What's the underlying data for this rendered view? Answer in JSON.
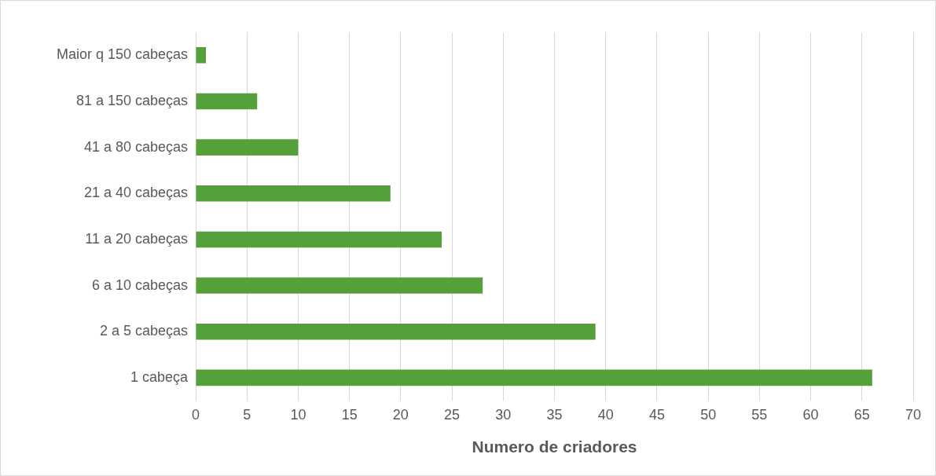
{
  "chart_data": {
    "type": "bar",
    "orientation": "horizontal",
    "xlabel": "Numero de criadores",
    "categories": [
      "Maior q 150 cabeças",
      "81 a 150 cabeças",
      "41 a 80 cabeças",
      "21 a 40 cabeças",
      "11 a 20 cabeças",
      "6 a 10 cabeças",
      "2 a 5 cabeças",
      "1 cabeça"
    ],
    "values": [
      1,
      6,
      10,
      19,
      24,
      28,
      39,
      66
    ],
    "color": "#55a03a",
    "xlim": [
      0,
      70
    ],
    "xticks": [
      0,
      5,
      10,
      15,
      20,
      25,
      30,
      35,
      40,
      45,
      50,
      55,
      60,
      65,
      70
    ],
    "grid": "x",
    "legend": false
  }
}
